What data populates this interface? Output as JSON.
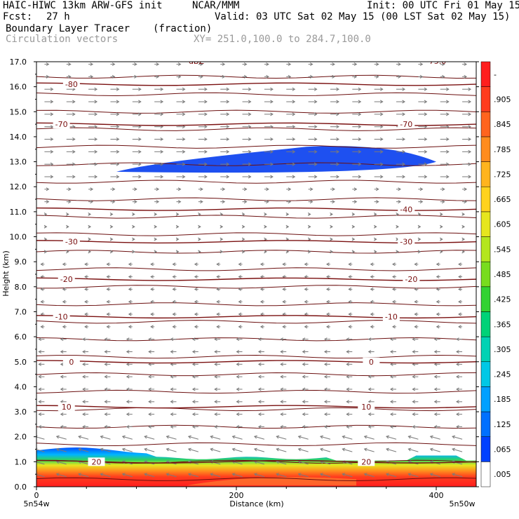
{
  "header": {
    "model": "HAIC-HIWC 13km ARW-GFS init",
    "org": "NCAR/MMM",
    "init": "Init: 00 UTC Fri 01 May 15",
    "fcst_label": "Fcst:",
    "fcst_value": "27 h",
    "valid": "Valid: 03 UTC Sat 02 May 15 (00 LST Sat 02 May 15)",
    "field": "Boundary Layer Tracer",
    "field_units": "(fraction)",
    "vectors": "Circulation vectors",
    "xsection": "XY= 251.0,100.0 to 284.7,100.0"
  },
  "chart_data": {
    "type": "cross-section",
    "ylabel": "Height (km)",
    "xlabel": "Distance (km)",
    "xlim": [
      0,
      440
    ],
    "ylim": [
      0,
      17
    ],
    "y_ticks": [
      "0.0",
      "1.0",
      "2.0",
      "3.0",
      "4.0",
      "5.0",
      "6.0",
      "7.0",
      "8.0",
      "9.0",
      "10.0",
      "11.0",
      "12.0",
      "13.0",
      "14.0",
      "15.0",
      "16.0",
      "17.0"
    ],
    "x_ticks": [
      {
        "value": 0,
        "label": "0"
      },
      {
        "value": 200,
        "label": "200"
      },
      {
        "value": 400,
        "label": "400"
      }
    ],
    "x_endpoints": {
      "left": "5n54w",
      "right": "5n50w"
    },
    "top_partial_labels": [
      "dBZ",
      "-75.0"
    ],
    "temperature_contours": [
      {
        "value": 20,
        "label": "20",
        "label_x": [
          60,
          330
        ],
        "y": 1.0
      },
      {
        "value": 10,
        "label": "10",
        "label_x": [
          30,
          330
        ],
        "y": 3.2
      },
      {
        "value": 0,
        "label": "0",
        "label_x": [
          35,
          335
        ],
        "y": 5.0
      },
      {
        "value": -10,
        "label": "-10",
        "label_x": [
          25,
          355
        ],
        "y": 6.8
      },
      {
        "value": -20,
        "label": "-20",
        "label_x": [
          30,
          375
        ],
        "y": 8.3
      },
      {
        "value": -30,
        "label": "-30",
        "label_x": [
          35,
          370
        ],
        "y": 9.8
      },
      {
        "value": -40,
        "label": "-40",
        "label_x": [
          370
        ],
        "y": 11.1
      },
      {
        "value": -70,
        "label": "-70",
        "label_x": [
          25,
          370
        ],
        "y": 14.5
      },
      {
        "value": -80,
        "label": "-80",
        "label_x": [
          35
        ],
        "y": 16.1
      }
    ],
    "tracer_colorbar": {
      "labels": [
        ".005",
        ".065",
        ".125",
        ".185",
        ".245",
        ".305",
        ".365",
        ".425",
        ".485",
        ".545",
        ".605",
        ".665",
        ".725",
        ".785",
        ".845",
        ".905",
        "-"
      ],
      "colors": [
        "#ffffff",
        "#0040ff",
        "#0070ff",
        "#00a0ff",
        "#00c8e6",
        "#00d2b4",
        "#00d278",
        "#32d232",
        "#78dc1e",
        "#b4e61e",
        "#e6e61e",
        "#ffd21e",
        "#ffb41e",
        "#ff8c1e",
        "#ff641e",
        "#ff3c1e",
        "#ff1e1e"
      ]
    }
  }
}
